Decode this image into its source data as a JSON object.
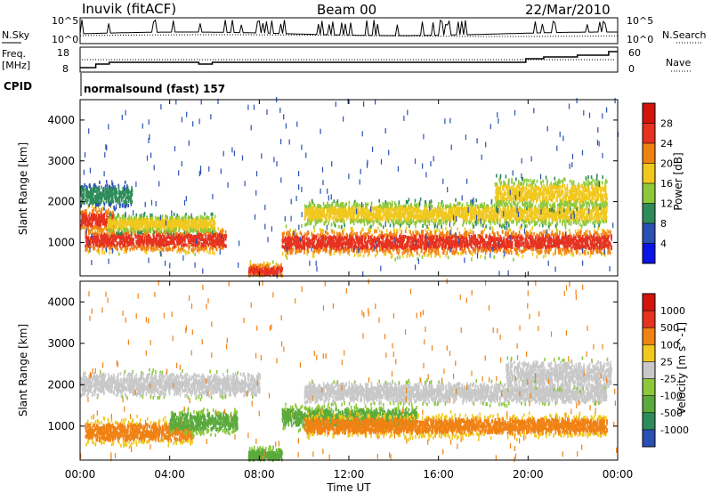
{
  "header": {
    "station": "Inuvik (fitACF)",
    "beam": "Beam 00",
    "date": "22/Mar/2010"
  },
  "noise_panel": {
    "left_label": "N.Sky",
    "right_label": "N.Search",
    "left_ticks": [
      "10^5",
      "10^0"
    ],
    "right_ticks": [
      "10^5",
      "10^0"
    ]
  },
  "freq_panel": {
    "left_label_line1": "Freq.",
    "left_label_line2": "[MHz]",
    "right_label": "Nave",
    "left_ticks": [
      "18",
      "8"
    ],
    "right_ticks": [
      "60",
      "0"
    ]
  },
  "cpid": {
    "label": "CPID",
    "mode": "normalsound (fast) 157"
  },
  "x_axis": {
    "label": "Time UT",
    "ticks": [
      "00:00",
      "04:00",
      "08:00",
      "12:00",
      "16:00",
      "20:00",
      "00:00"
    ]
  },
  "chart_data": [
    {
      "type": "heatmap",
      "name": "power",
      "ylabel": "Slant Range [km]",
      "yticks": [
        "4000",
        "3000",
        "2000",
        "1000"
      ],
      "ylim": [
        180,
        4500
      ],
      "xlim_hours": [
        0,
        24
      ],
      "colorbar": {
        "label": "Power [dB]",
        "ticks": [
          "28",
          "24",
          "20",
          "16",
          "12",
          "8",
          "4"
        ],
        "range": [
          0,
          30
        ],
        "colors": [
          "#0a14e6",
          "#2a50b4",
          "#2f8c5a",
          "#8cc83a",
          "#f0c81e",
          "#f08214",
          "#e6321e",
          "#d2140a"
        ]
      },
      "scatter_bands_km_vs_hours": [
        {
          "from": 0.2,
          "to": 6.5,
          "center": 1050,
          "width": 420,
          "level": "strong"
        },
        {
          "from": 0.0,
          "to": 1.5,
          "center": 1550,
          "width": 450,
          "level": "strong"
        },
        {
          "from": 1.2,
          "to": 6.0,
          "center": 1450,
          "width": 300,
          "level": "medium"
        },
        {
          "from": 0.0,
          "to": 2.3,
          "center": 2150,
          "width": 400,
          "level": "weak"
        },
        {
          "from": 7.5,
          "to": 9.0,
          "center": 300,
          "width": 250,
          "level": "strong"
        },
        {
          "from": 9.0,
          "to": 23.7,
          "center": 1000,
          "width": 450,
          "level": "strong"
        },
        {
          "from": 10.0,
          "to": 23.5,
          "center": 1700,
          "width": 400,
          "level": "medium"
        },
        {
          "from": 18.5,
          "to": 23.5,
          "center": 2200,
          "width": 500,
          "level": "medium"
        }
      ]
    },
    {
      "type": "heatmap",
      "name": "velocity",
      "ylabel": "Slant Range [km]",
      "yticks": [
        "4000",
        "3000",
        "2000",
        "1000"
      ],
      "ylim": [
        180,
        4500
      ],
      "xlim_hours": [
        0,
        24
      ],
      "colorbar": {
        "label": "Velocity [m s^-1]",
        "ticks": [
          "1000",
          "500",
          "100",
          "25",
          "-25",
          "-100",
          "-500",
          "-1000"
        ],
        "colors": [
          "#2a50b4",
          "#2f8c5a",
          "#5aaa3c",
          "#8cc83a",
          "#c8c8c8",
          "#f0c81e",
          "#f08214",
          "#e6321e",
          "#d2140a"
        ]
      },
      "scatter_bands_km_vs_hours": [
        {
          "from": 0.2,
          "to": 5.0,
          "center": 850,
          "width": 400,
          "level": "orange"
        },
        {
          "from": 4.0,
          "to": 7.0,
          "center": 1100,
          "width": 400,
          "level": "green"
        },
        {
          "from": 0.0,
          "to": 8.0,
          "center": 2000,
          "width": 400,
          "level": "grey"
        },
        {
          "from": 7.5,
          "to": 9.0,
          "center": 300,
          "width": 250,
          "level": "green"
        },
        {
          "from": 9.0,
          "to": 15.0,
          "center": 1200,
          "width": 400,
          "level": "green"
        },
        {
          "from": 10.0,
          "to": 23.5,
          "center": 1000,
          "width": 350,
          "level": "orange"
        },
        {
          "from": 10.0,
          "to": 23.5,
          "center": 1800,
          "width": 350,
          "level": "grey"
        },
        {
          "from": 19.0,
          "to": 23.7,
          "center": 2250,
          "width": 450,
          "level": "grey"
        }
      ]
    }
  ]
}
